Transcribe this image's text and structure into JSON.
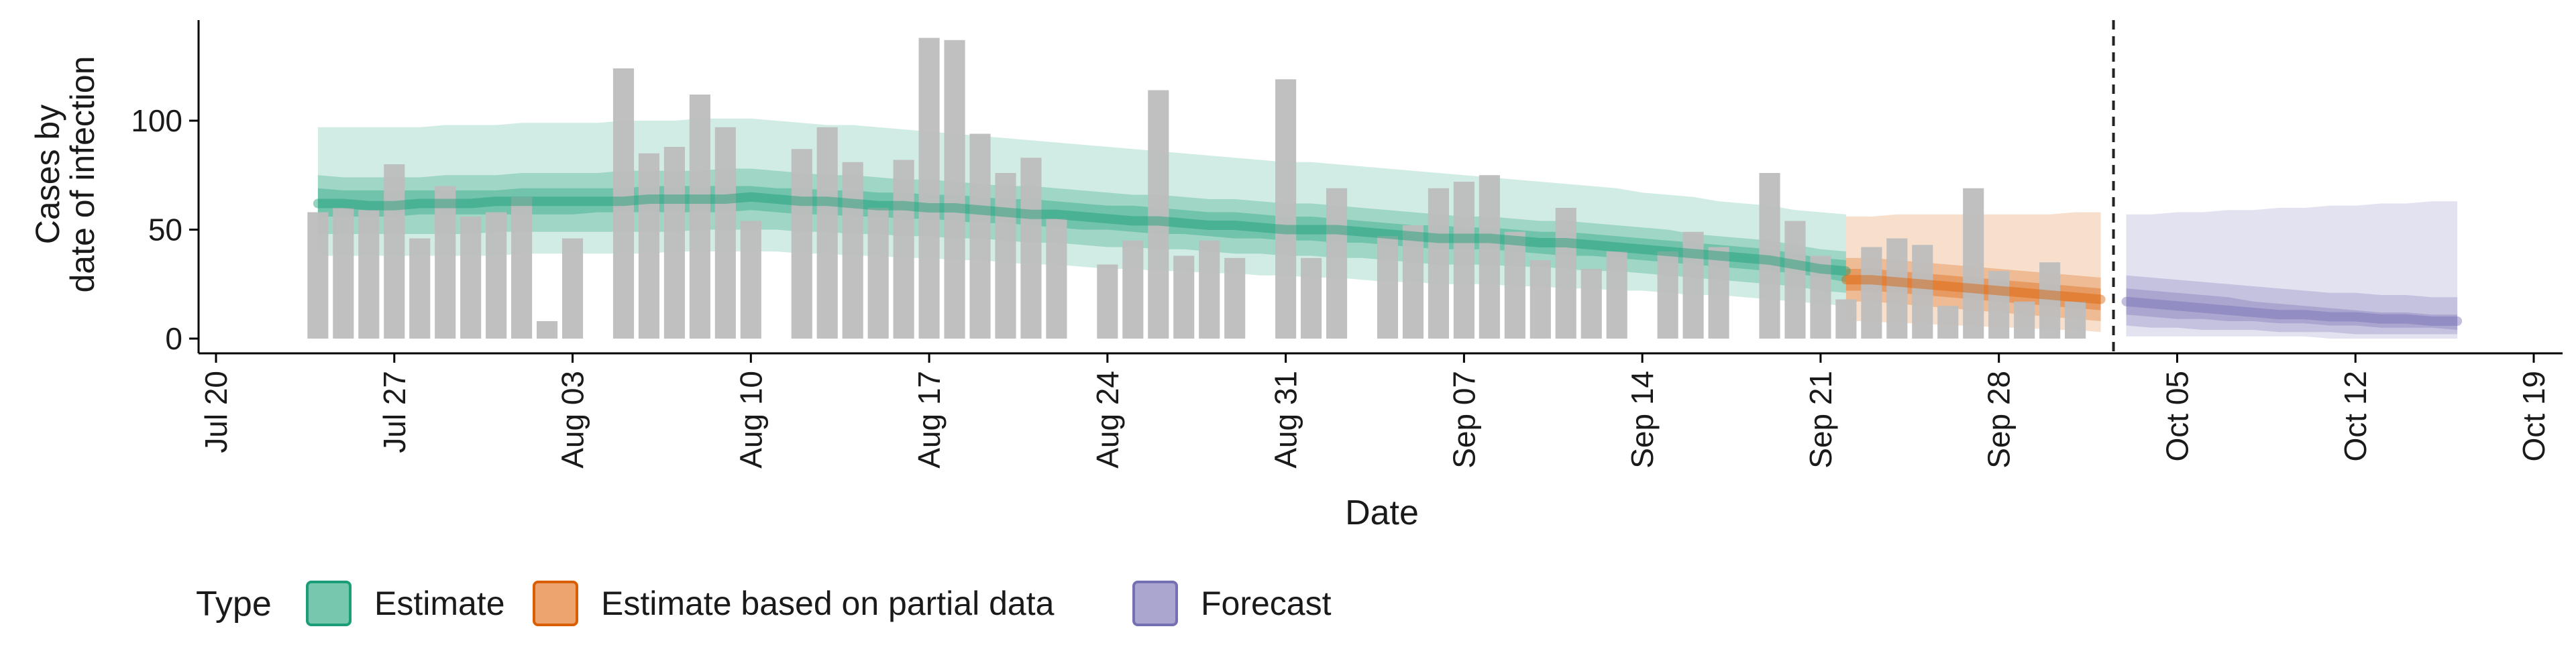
{
  "chart_data": {
    "type": "bar",
    "ylabel_lines": [
      "Cases by",
      "date of infection"
    ],
    "xlabel": "Date",
    "ylim": [
      0,
      145
    ],
    "y_ticks": [
      0,
      50,
      100
    ],
    "x_range": [
      "2020-07-20",
      "2020-10-19"
    ],
    "x_ticks": [
      {
        "date": "2020-07-20",
        "label": "Jul 20"
      },
      {
        "date": "2020-07-27",
        "label": "Jul 27"
      },
      {
        "date": "2020-08-03",
        "label": "Aug 03"
      },
      {
        "date": "2020-08-10",
        "label": "Aug 10"
      },
      {
        "date": "2020-08-17",
        "label": "Aug 17"
      },
      {
        "date": "2020-08-24",
        "label": "Aug 24"
      },
      {
        "date": "2020-08-31",
        "label": "Aug 31"
      },
      {
        "date": "2020-09-07",
        "label": "Sep 07"
      },
      {
        "date": "2020-09-14",
        "label": "Sep 14"
      },
      {
        "date": "2020-09-21",
        "label": "Sep 21"
      },
      {
        "date": "2020-09-28",
        "label": "Sep 28"
      },
      {
        "date": "2020-10-05",
        "label": "Oct 05"
      },
      {
        "date": "2020-10-12",
        "label": "Oct 12"
      },
      {
        "date": "2020-10-19",
        "label": "Oct 19"
      }
    ],
    "bars": {
      "color": "#bdbdbd",
      "start_date": "2020-07-24",
      "values": [
        58,
        60,
        59,
        80,
        46,
        70,
        56,
        58,
        65,
        8,
        46,
        0,
        124,
        85,
        88,
        112,
        97,
        54,
        0,
        87,
        97,
        81,
        60,
        82,
        138,
        137,
        94,
        76,
        83,
        55,
        0,
        34,
        45,
        114,
        38,
        45,
        37,
        0,
        119,
        37,
        69,
        0,
        47,
        52,
        69,
        72,
        75,
        49,
        36,
        60,
        32,
        40,
        0,
        40,
        49,
        42,
        0,
        76,
        54,
        38,
        18,
        42,
        46,
        43,
        15,
        69,
        31,
        17,
        35,
        17
      ]
    },
    "vline_date": "2020-10-02",
    "legend": {
      "title": "Type",
      "position": "bottom-left",
      "items": [
        {
          "label": "Estimate",
          "fill": "#76c7ad",
          "stroke": "#1b9e77"
        },
        {
          "label": "Estimate based on partial data",
          "fill": "#eda56f",
          "stroke": "#d95f02"
        },
        {
          "label": "Forecast",
          "fill": "#aaa6cf",
          "stroke": "#7570b3"
        }
      ]
    },
    "series": [
      {
        "name": "Estimate",
        "color": "#1b9e77",
        "start_date": "2020-07-24",
        "median": [
          62,
          62,
          61,
          61,
          62,
          62,
          62,
          63,
          63,
          63,
          63,
          63,
          63,
          64,
          64,
          64,
          64,
          65,
          64,
          63,
          63,
          62,
          61,
          61,
          60,
          60,
          59,
          58,
          57,
          57,
          56,
          55,
          54,
          54,
          53,
          52,
          52,
          51,
          50,
          50,
          50,
          49,
          48,
          47,
          46,
          46,
          46,
          45,
          44,
          44,
          43,
          42,
          41,
          40,
          39,
          38,
          37,
          36,
          34,
          32,
          31
        ],
        "inner": [
          [
            56,
            69
          ],
          [
            56,
            68
          ],
          [
            56,
            68
          ],
          [
            56,
            68
          ],
          [
            57,
            68
          ],
          [
            57,
            68
          ],
          [
            57,
            68
          ],
          [
            57,
            68
          ],
          [
            57,
            69
          ],
          [
            57,
            69
          ],
          [
            57,
            69
          ],
          [
            58,
            69
          ],
          [
            58,
            69
          ],
          [
            58,
            70
          ],
          [
            58,
            70
          ],
          [
            58,
            70
          ],
          [
            58,
            70
          ],
          [
            59,
            70
          ],
          [
            58,
            69
          ],
          [
            57,
            69
          ],
          [
            57,
            68
          ],
          [
            56,
            68
          ],
          [
            56,
            67
          ],
          [
            55,
            67
          ],
          [
            55,
            66
          ],
          [
            54,
            66
          ],
          [
            53,
            65
          ],
          [
            53,
            64
          ],
          [
            52,
            64
          ],
          [
            51,
            63
          ],
          [
            50,
            62
          ],
          [
            50,
            61
          ],
          [
            49,
            61
          ],
          [
            48,
            60
          ],
          [
            48,
            59
          ],
          [
            47,
            58
          ],
          [
            46,
            58
          ],
          [
            46,
            57
          ],
          [
            45,
            56
          ],
          [
            45,
            56
          ],
          [
            44,
            55
          ],
          [
            44,
            54
          ],
          [
            43,
            53
          ],
          [
            42,
            52
          ],
          [
            41,
            52
          ],
          [
            41,
            51
          ],
          [
            41,
            51
          ],
          [
            40,
            50
          ],
          [
            39,
            49
          ],
          [
            38,
            49
          ],
          [
            38,
            48
          ],
          [
            37,
            47
          ],
          [
            36,
            46
          ],
          [
            35,
            45
          ],
          [
            34,
            44
          ],
          [
            33,
            43
          ],
          [
            32,
            42
          ],
          [
            31,
            41
          ],
          [
            30,
            39
          ],
          [
            28,
            37
          ],
          [
            26,
            36
          ]
        ],
        "mid": [
          [
            48,
            75
          ],
          [
            48,
            74
          ],
          [
            48,
            74
          ],
          [
            48,
            74
          ],
          [
            48,
            74
          ],
          [
            48,
            75
          ],
          [
            48,
            75
          ],
          [
            49,
            75
          ],
          [
            49,
            76
          ],
          [
            49,
            76
          ],
          [
            49,
            76
          ],
          [
            49,
            76
          ],
          [
            49,
            77
          ],
          [
            49,
            77
          ],
          [
            49,
            77
          ],
          [
            50,
            77
          ],
          [
            50,
            78
          ],
          [
            50,
            78
          ],
          [
            50,
            77
          ],
          [
            49,
            76
          ],
          [
            49,
            75
          ],
          [
            48,
            75
          ],
          [
            48,
            74
          ],
          [
            47,
            73
          ],
          [
            47,
            73
          ],
          [
            46,
            72
          ],
          [
            46,
            71
          ],
          [
            45,
            70
          ],
          [
            44,
            70
          ],
          [
            44,
            69
          ],
          [
            43,
            68
          ],
          [
            42,
            67
          ],
          [
            42,
            66
          ],
          [
            41,
            66
          ],
          [
            41,
            65
          ],
          [
            40,
            64
          ],
          [
            39,
            64
          ],
          [
            39,
            63
          ],
          [
            38,
            62
          ],
          [
            38,
            62
          ],
          [
            37,
            61
          ],
          [
            37,
            60
          ],
          [
            36,
            59
          ],
          [
            35,
            58
          ],
          [
            34,
            57
          ],
          [
            34,
            56
          ],
          [
            34,
            56
          ],
          [
            33,
            55
          ],
          [
            33,
            54
          ],
          [
            32,
            54
          ],
          [
            31,
            53
          ],
          [
            31,
            52
          ],
          [
            30,
            51
          ],
          [
            29,
            50
          ],
          [
            28,
            48
          ],
          [
            27,
            47
          ],
          [
            26,
            46
          ],
          [
            25,
            45
          ],
          [
            24,
            43
          ],
          [
            22,
            41
          ],
          [
            21,
            40
          ]
        ],
        "outer": [
          [
            38,
            97
          ],
          [
            38,
            97
          ],
          [
            38,
            97
          ],
          [
            38,
            97
          ],
          [
            38,
            97
          ],
          [
            38,
            98
          ],
          [
            38,
            98
          ],
          [
            38,
            98
          ],
          [
            39,
            99
          ],
          [
            39,
            99
          ],
          [
            39,
            99
          ],
          [
            39,
            99
          ],
          [
            39,
            100
          ],
          [
            39,
            100
          ],
          [
            40,
            100
          ],
          [
            40,
            101
          ],
          [
            40,
            101
          ],
          [
            40,
            101
          ],
          [
            40,
            100
          ],
          [
            39,
            99
          ],
          [
            39,
            98
          ],
          [
            38,
            98
          ],
          [
            38,
            97
          ],
          [
            37,
            96
          ],
          [
            37,
            95
          ],
          [
            36,
            94
          ],
          [
            36,
            93
          ],
          [
            35,
            92
          ],
          [
            34,
            91
          ],
          [
            34,
            90
          ],
          [
            33,
            89
          ],
          [
            32,
            88
          ],
          [
            32,
            87
          ],
          [
            31,
            86
          ],
          [
            31,
            85
          ],
          [
            30,
            84
          ],
          [
            30,
            83
          ],
          [
            29,
            82
          ],
          [
            29,
            81
          ],
          [
            28,
            81
          ],
          [
            28,
            80
          ],
          [
            27,
            79
          ],
          [
            26,
            78
          ],
          [
            26,
            77
          ],
          [
            25,
            76
          ],
          [
            25,
            75
          ],
          [
            25,
            74
          ],
          [
            24,
            73
          ],
          [
            24,
            72
          ],
          [
            23,
            71
          ],
          [
            23,
            70
          ],
          [
            22,
            69
          ],
          [
            22,
            67
          ],
          [
            21,
            66
          ],
          [
            20,
            65
          ],
          [
            20,
            63
          ],
          [
            19,
            62
          ],
          [
            18,
            61
          ],
          [
            17,
            59
          ],
          [
            16,
            58
          ],
          [
            15,
            57
          ]
        ]
      },
      {
        "name": "Estimate based on partial data",
        "color": "#d95f02",
        "start_date": "2020-09-22",
        "median": [
          27,
          27,
          26,
          25,
          24,
          23,
          22,
          21,
          20,
          19,
          18
        ],
        "inner": [
          [
            22,
            32
          ],
          [
            22,
            32
          ],
          [
            21,
            31
          ],
          [
            20,
            30
          ],
          [
            19,
            29
          ],
          [
            18,
            28
          ],
          [
            17,
            27
          ],
          [
            16,
            26
          ],
          [
            15,
            25
          ],
          [
            14,
            24
          ],
          [
            13,
            23
          ]
        ],
        "mid": [
          [
            17,
            37
          ],
          [
            17,
            37
          ],
          [
            16,
            36
          ],
          [
            15,
            35
          ],
          [
            14,
            34
          ],
          [
            13,
            33
          ],
          [
            12,
            32
          ],
          [
            11,
            31
          ],
          [
            10,
            30
          ],
          [
            9,
            29
          ],
          [
            8,
            28
          ]
        ],
        "outer": [
          [
            8,
            56
          ],
          [
            8,
            56
          ],
          [
            7,
            57
          ],
          [
            7,
            57
          ],
          [
            6,
            57
          ],
          [
            6,
            57
          ],
          [
            5,
            57
          ],
          [
            5,
            57
          ],
          [
            4,
            57
          ],
          [
            4,
            58
          ],
          [
            3,
            58
          ]
        ]
      },
      {
        "name": "Forecast",
        "color": "#7570b3",
        "start_date": "2020-10-03",
        "median": [
          17,
          16,
          15,
          14,
          13,
          12,
          11,
          11,
          10,
          10,
          9,
          9,
          8,
          8
        ],
        "inner": [
          [
            11,
            23
          ],
          [
            10,
            22
          ],
          [
            9,
            21
          ],
          [
            9,
            20
          ],
          [
            8,
            19
          ],
          [
            8,
            17
          ],
          [
            7,
            16
          ],
          [
            7,
            15
          ],
          [
            6,
            14
          ],
          [
            6,
            13
          ],
          [
            5,
            12
          ],
          [
            5,
            12
          ],
          [
            5,
            11
          ],
          [
            4,
            11
          ]
        ],
        "mid": [
          [
            6,
            29
          ],
          [
            5,
            28
          ],
          [
            5,
            27
          ],
          [
            4,
            26
          ],
          [
            4,
            25
          ],
          [
            4,
            24
          ],
          [
            3,
            23
          ],
          [
            3,
            22
          ],
          [
            3,
            21
          ],
          [
            2,
            21
          ],
          [
            2,
            20
          ],
          [
            2,
            20
          ],
          [
            2,
            19
          ],
          [
            2,
            19
          ]
        ],
        "outer": [
          [
            1,
            57
          ],
          [
            1,
            57
          ],
          [
            1,
            58
          ],
          [
            1,
            58
          ],
          [
            1,
            59
          ],
          [
            1,
            59
          ],
          [
            1,
            60
          ],
          [
            1,
            60
          ],
          [
            0,
            61
          ],
          [
            0,
            61
          ],
          [
            0,
            62
          ],
          [
            0,
            62
          ],
          [
            0,
            63
          ],
          [
            0,
            63
          ]
        ]
      }
    ]
  }
}
